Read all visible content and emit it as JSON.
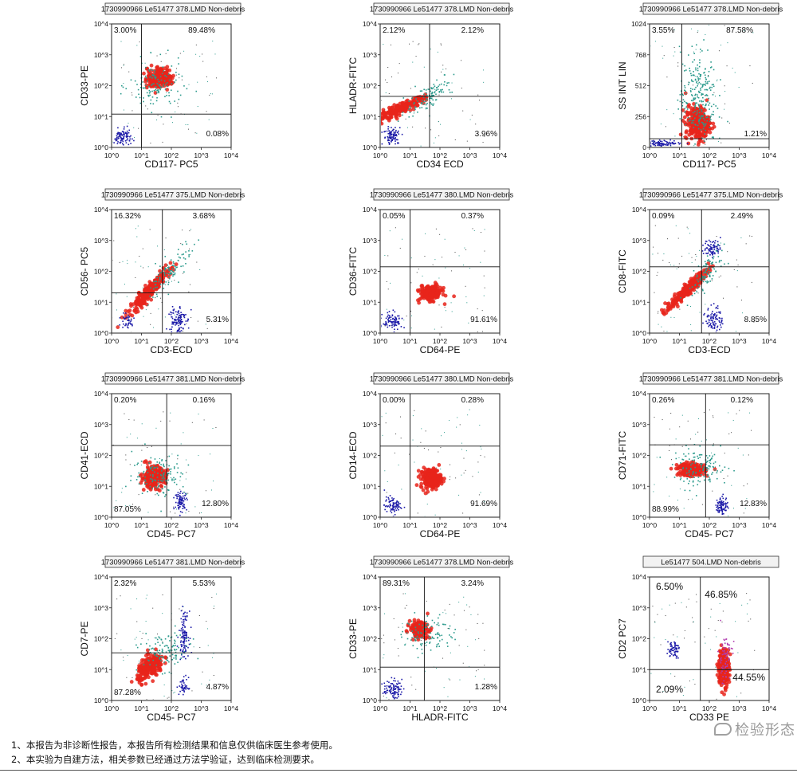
{
  "chart_data": [
    {
      "type": "scatter",
      "header": "1730990966 Le51477 378.LMD  Non-debris",
      "xlabel": "CD117- PC5",
      "ylabel": "CD33-PE",
      "xscale": "log",
      "yscale": "log",
      "xlim": [
        1,
        10000
      ],
      "ylim": [
        1,
        10000
      ],
      "xticks": [
        "10^0",
        "10^1",
        "10^2",
        "10^3",
        "10^4"
      ],
      "yticks": [
        "10^0",
        "10^1",
        "10^2",
        "10^3",
        "10^4"
      ],
      "gate": [
        10,
        12
      ],
      "quadrants": {
        "ul": "3.00%",
        "ur": "89.48%",
        "ll": "",
        "lr": "0.08%"
      },
      "populations": [
        {
          "color": "red",
          "x": 40,
          "y": 180,
          "sx": 0.22,
          "sy": 0.15,
          "n": 220
        },
        {
          "color": "blue",
          "x": 2.2,
          "y": 2.2,
          "sx": 0.14,
          "sy": 0.14,
          "n": 90
        },
        {
          "color": "teal",
          "x": 30,
          "y": 100,
          "sx": 0.45,
          "sy": 0.4,
          "n": 130
        }
      ]
    },
    {
      "type": "scatter",
      "header": "1730990966 Le51477 378.LMD  Non-debris",
      "xlabel": "CD34 ECD",
      "ylabel": "HLADR-FITC",
      "xscale": "log",
      "yscale": "log",
      "xlim": [
        1,
        10000
      ],
      "ylim": [
        1,
        10000
      ],
      "xticks": [
        "10^0",
        "10^1",
        "10^2",
        "10^3",
        "10^4"
      ],
      "yticks": [
        "10^0",
        "10^1",
        "10^2",
        "10^3",
        "10^4"
      ],
      "gate": [
        45,
        45
      ],
      "quadrants": {
        "ul": "2.12%",
        "ur": "2.12%",
        "ll": "",
        "lr": "3.96%"
      },
      "populations": [
        {
          "color": "red",
          "x": 5,
          "y": 18,
          "sx": 0.4,
          "sy": 0.08,
          "n": 220,
          "slope": 0.45
        },
        {
          "color": "blue",
          "x": 2.5,
          "y": 2.5,
          "sx": 0.15,
          "sy": 0.15,
          "n": 90
        },
        {
          "color": "teal",
          "x": 40,
          "y": 50,
          "sx": 0.4,
          "sy": 0.2,
          "n": 110,
          "slope": 0.6
        }
      ]
    },
    {
      "type": "scatter",
      "header": "1730990966 Le51477 378.LMD  Non-debris",
      "xlabel": "CD117- PC5",
      "ylabel": "SS INT LIN",
      "xscale": "log",
      "yscale": "linear",
      "xlim": [
        1,
        10000
      ],
      "ylim": [
        0,
        1024
      ],
      "xticks": [
        "10^0",
        "10^1",
        "10^2",
        "10^3",
        "10^4"
      ],
      "yticks": [
        "0",
        "256",
        "512",
        "768",
        "1024"
      ],
      "gate": [
        12,
        72
      ],
      "quadrants": {
        "ul": "3.55%",
        "ur": "87.58%",
        "ll": "",
        "lr": "1.21%"
      },
      "populations": [
        {
          "color": "red",
          "x": 40,
          "y": 200,
          "sx": 0.2,
          "sy": 70,
          "n": 260
        },
        {
          "color": "teal",
          "x": 40,
          "y": 420,
          "sx": 0.3,
          "sy": 200,
          "n": 260
        },
        {
          "color": "blue",
          "x": 3,
          "y": 40,
          "sx": 0.3,
          "sy": 12,
          "n": 80
        }
      ]
    },
    {
      "type": "scatter",
      "header": "1730990966 Le51477 375.LMD  Non-debris",
      "xlabel": "CD3-ECD",
      "ylabel": "CD56- PC5",
      "xscale": "log",
      "yscale": "log",
      "xlim": [
        1,
        10000
      ],
      "ylim": [
        1,
        10000
      ],
      "xticks": [
        "10^0",
        "10^1",
        "10^2",
        "10^3",
        "10^4"
      ],
      "yticks": [
        "10^0",
        "10^1",
        "10^2",
        "10^3",
        "10^4"
      ],
      "gate": [
        50,
        20
      ],
      "quadrants": {
        "ul": "16.32%",
        "ur": "3.68%",
        "ll": "",
        "lr": "5.31%"
      },
      "populations": [
        {
          "color": "red",
          "x": 20,
          "y": 25,
          "sx": 0.35,
          "sy": 0.12,
          "n": 240,
          "slope": 1.0
        },
        {
          "color": "blue",
          "x": 150,
          "y": 3,
          "sx": 0.14,
          "sy": 0.25,
          "n": 110
        },
        {
          "color": "blue",
          "x": 3,
          "y": 2.5,
          "sx": 0.15,
          "sy": 0.12,
          "n": 40
        },
        {
          "color": "teal",
          "x": 100,
          "y": 120,
          "sx": 0.35,
          "sy": 0.25,
          "n": 100,
          "slope": 1.0
        }
      ]
    },
    {
      "type": "scatter",
      "header": "1730990966 Le51477 380.LMD  Non-debris",
      "xlabel": "CD64-PE",
      "ylabel": "CD36-FITC",
      "xscale": "log",
      "yscale": "log",
      "xlim": [
        1,
        10000
      ],
      "ylim": [
        1,
        10000
      ],
      "xticks": [
        "10^0",
        "10^1",
        "10^2",
        "10^3",
        "10^4"
      ],
      "yticks": [
        "10^0",
        "10^1",
        "10^2",
        "10^3",
        "10^4"
      ],
      "gate": [
        10,
        140
      ],
      "quadrants": {
        "ul": "0.05%",
        "ur": "0.37%",
        "ll": "",
        "lr": "91.61%"
      },
      "populations": [
        {
          "color": "red",
          "x": 50,
          "y": 20,
          "sx": 0.18,
          "sy": 0.12,
          "n": 220
        },
        {
          "color": "blue",
          "x": 2.5,
          "y": 2.5,
          "sx": 0.16,
          "sy": 0.14,
          "n": 90
        }
      ]
    },
    {
      "type": "scatter",
      "header": "1730990966 Le51477 375.LMD  Non-debris",
      "xlabel": "CD3-ECD",
      "ylabel": "CD8-FITC",
      "xscale": "log",
      "yscale": "log",
      "xlim": [
        1,
        10000
      ],
      "ylim": [
        1,
        10000
      ],
      "xticks": [
        "10^0",
        "10^1",
        "10^2",
        "10^3",
        "10^4"
      ],
      "yticks": [
        "10^0",
        "10^1",
        "10^2",
        "10^3",
        "10^4"
      ],
      "gate": [
        55,
        140
      ],
      "quadrants": {
        "ul": "0.09%",
        "ur": "2.49%",
        "ll": "",
        "lr": "8.85%"
      },
      "populations": [
        {
          "color": "red",
          "x": 18,
          "y": 25,
          "sx": 0.35,
          "sy": 0.1,
          "n": 220,
          "slope": 0.9
        },
        {
          "color": "blue",
          "x": 120,
          "y": 600,
          "sx": 0.14,
          "sy": 0.14,
          "n": 80
        },
        {
          "color": "blue",
          "x": 140,
          "y": 3,
          "sx": 0.14,
          "sy": 0.2,
          "n": 90
        },
        {
          "color": "teal",
          "x": 80,
          "y": 100,
          "sx": 0.3,
          "sy": 0.25,
          "n": 100,
          "slope": 1.0
        }
      ]
    },
    {
      "type": "scatter",
      "header": "1730990966 Le51477 381.LMD  Non-debris",
      "xlabel": "CD45- PC7",
      "ylabel": "CD41-ECD",
      "xscale": "log",
      "yscale": "log",
      "xlim": [
        1,
        10000
      ],
      "ylim": [
        1,
        10000
      ],
      "xticks": [
        "10^0",
        "10^1",
        "10^2",
        "10^3",
        "10^4"
      ],
      "yticks": [
        "10^0",
        "10^1",
        "10^2",
        "10^3",
        "10^4"
      ],
      "gate": [
        70,
        210
      ],
      "quadrants": {
        "ul": "0.20%",
        "ur": "0.16%",
        "ll": "87.05%",
        "lr": "12.80%"
      },
      "populations": [
        {
          "color": "red",
          "x": 25,
          "y": 20,
          "sx": 0.2,
          "sy": 0.17,
          "n": 240
        },
        {
          "color": "blue",
          "x": 200,
          "y": 3.5,
          "sx": 0.1,
          "sy": 0.14,
          "n": 80
        },
        {
          "color": "teal",
          "x": 40,
          "y": 25,
          "sx": 0.45,
          "sy": 0.35,
          "n": 130
        }
      ]
    },
    {
      "type": "scatter",
      "header": "1730990966 Le51477 380.LMD  Non-debris",
      "xlabel": "CD64-PE",
      "ylabel": "CD14-ECD",
      "xscale": "log",
      "yscale": "log",
      "xlim": [
        1,
        10000
      ],
      "ylim": [
        1,
        10000
      ],
      "xticks": [
        "10^0",
        "10^1",
        "10^2",
        "10^3",
        "10^4"
      ],
      "yticks": [
        "10^0",
        "10^1",
        "10^2",
        "10^3",
        "10^4"
      ],
      "gate": [
        10,
        200
      ],
      "quadrants": {
        "ul": "0.00%",
        "ur": "0.28%",
        "ll": "",
        "lr": "91.69%"
      },
      "populations": [
        {
          "color": "red",
          "x": 50,
          "y": 18,
          "sx": 0.17,
          "sy": 0.16,
          "n": 220
        },
        {
          "color": "blue",
          "x": 2.5,
          "y": 2.5,
          "sx": 0.14,
          "sy": 0.14,
          "n": 80
        }
      ]
    },
    {
      "type": "scatter",
      "header": "1730990966 Le51477 381.LMD  Non-debris",
      "xlabel": "CD45- PC7",
      "ylabel": "CD71-FITC",
      "xscale": "log",
      "yscale": "log",
      "xlim": [
        1,
        10000
      ],
      "ylim": [
        1,
        10000
      ],
      "xticks": [
        "10^0",
        "10^1",
        "10^2",
        "10^3",
        "10^4"
      ],
      "yticks": [
        "10^0",
        "10^1",
        "10^2",
        "10^3",
        "10^4"
      ],
      "gate": [
        75,
        220
      ],
      "quadrants": {
        "ul": "0.26%",
        "ur": "0.12%",
        "ll": "88.99%",
        "lr": "12.83%"
      },
      "populations": [
        {
          "color": "red",
          "x": 25,
          "y": 35,
          "sx": 0.22,
          "sy": 0.1,
          "n": 230
        },
        {
          "color": "blue",
          "x": 250,
          "y": 2.5,
          "sx": 0.1,
          "sy": 0.14,
          "n": 80
        },
        {
          "color": "teal",
          "x": 50,
          "y": 40,
          "sx": 0.45,
          "sy": 0.3,
          "n": 130
        }
      ]
    },
    {
      "type": "scatter",
      "header": "1730990966 Le51477 381.LMD  Non-debris",
      "xlabel": "CD45- PC7",
      "ylabel": "CD7-PE",
      "xscale": "log",
      "yscale": "log",
      "xlim": [
        1,
        10000
      ],
      "ylim": [
        1,
        10000
      ],
      "xticks": [
        "10^0",
        "10^1",
        "10^2",
        "10^3",
        "10^4"
      ],
      "yticks": [
        "10^0",
        "10^1",
        "10^2",
        "10^3",
        "10^4"
      ],
      "gate": [
        100,
        35
      ],
      "quadrants": {
        "ul": "2.32%",
        "ur": "5.53%",
        "ll": "87.28%",
        "lr": "4.87%"
      },
      "populations": [
        {
          "color": "red",
          "x": 20,
          "y": 12,
          "sx": 0.22,
          "sy": 0.18,
          "n": 230,
          "slope": 0.5
        },
        {
          "color": "blue",
          "x": 250,
          "y": 150,
          "sx": 0.08,
          "sy": 0.35,
          "n": 110
        },
        {
          "color": "blue",
          "x": 250,
          "y": 3,
          "sx": 0.08,
          "sy": 0.15,
          "n": 40
        },
        {
          "color": "teal",
          "x": 60,
          "y": 40,
          "sx": 0.4,
          "sy": 0.3,
          "n": 110
        }
      ]
    },
    {
      "type": "scatter",
      "header": "1730990966 Le51477 378.LMD  Non-debris",
      "xlabel": "HLADR-FITC",
      "ylabel": "CD33-PE",
      "xscale": "log",
      "yscale": "log",
      "xlim": [
        1,
        10000
      ],
      "ylim": [
        1,
        10000
      ],
      "xticks": [
        "10^0",
        "10^1",
        "10^2",
        "10^3",
        "10^4"
      ],
      "yticks": [
        "10^0",
        "10^1",
        "10^2",
        "10^3",
        "10^4"
      ],
      "gate": [
        30,
        12
      ],
      "quadrants": {
        "ul": "89.31%",
        "ur": "3.24%",
        "ll": "",
        "lr": "1.28%"
      },
      "populations": [
        {
          "color": "red",
          "x": 20,
          "y": 200,
          "sx": 0.15,
          "sy": 0.12,
          "n": 220
        },
        {
          "color": "blue",
          "x": 2.5,
          "y": 2.5,
          "sx": 0.15,
          "sy": 0.14,
          "n": 90
        },
        {
          "color": "teal",
          "x": 40,
          "y": 150,
          "sx": 0.4,
          "sy": 0.3,
          "n": 100
        }
      ]
    },
    {
      "type": "scatter",
      "header": "Le51477 504.LMD  Non-debris",
      "xlabel": "CD33 PE",
      "ylabel": "CD2 PC7",
      "xscale": "log",
      "yscale": "log",
      "xlim": [
        1,
        10000
      ],
      "ylim": [
        1,
        10000
      ],
      "xticks": [
        "10^0",
        "10^1",
        "10^2",
        "10^3",
        "10^4"
      ],
      "yticks": [
        "10^0",
        "10^1",
        "10^2",
        "10^3",
        "10^4"
      ],
      "gate": [
        50,
        10
      ],
      "quadrants": {
        "ul": "6.50%",
        "ur": "46.85%",
        "ll": "2.09%",
        "lr": "44.55%"
      },
      "populations": [
        {
          "color": "red",
          "x": 300,
          "y": 12,
          "sx": 0.09,
          "sy": 0.3,
          "n": 220
        },
        {
          "color": "blue",
          "x": 6,
          "y": 50,
          "sx": 0.1,
          "sy": 0.14,
          "n": 60
        },
        {
          "color": "magenta",
          "x": 320,
          "y": 25,
          "sx": 0.12,
          "sy": 0.4,
          "n": 70
        }
      ]
    }
  ],
  "footer": {
    "note1": "1、本报告为非诊断性报告，本报告所有检测结果和信息仅供临床医生参考使用。",
    "note2": "2、本实验为自建方法，相关参数已经通过方法学验证，达到临床检测要求。",
    "watermark": "检验形态"
  },
  "colors": {
    "red": "#e8241b",
    "blue": "#1c1aa8",
    "teal": "#2a9a8c",
    "magenta": "#b03cb0",
    "black": "#444444"
  }
}
